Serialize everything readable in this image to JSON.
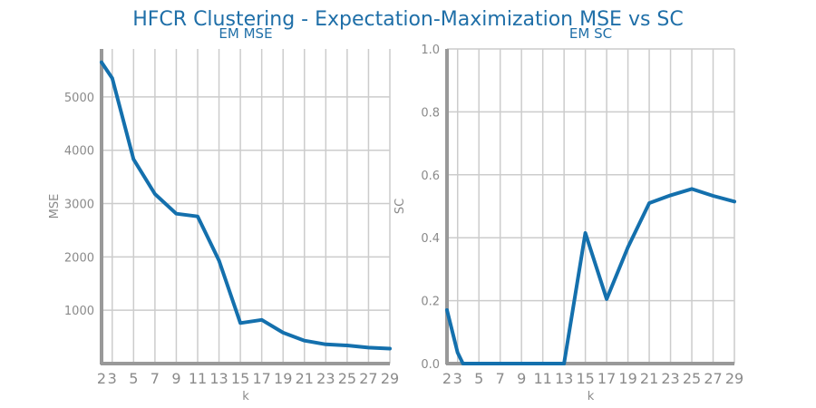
{
  "figure": {
    "title": "HFCR Clustering - Expectation-Maximization MSE vs SC",
    "title_color": "#1f6fa8"
  },
  "colors": {
    "line": "#1470ad",
    "grid": "#cccccc",
    "axis": "#999999",
    "tick_text": "#8a8a8a"
  },
  "chart_data": [
    {
      "type": "line",
      "title": "EM MSE",
      "xlabel": "k",
      "ylabel": "MSE",
      "x": [
        2,
        3,
        5,
        7,
        9,
        11,
        13,
        15,
        17,
        19,
        21,
        23,
        25,
        27,
        29
      ],
      "x_tick_labels": [
        "2",
        "3",
        "5",
        "7",
        "9",
        "11",
        "13",
        "15",
        "17",
        "19",
        "21",
        "23",
        "25",
        "27",
        "29"
      ],
      "series": [
        {
          "values": [
            5650,
            5350,
            3830,
            3180,
            2810,
            2760,
            1930,
            760,
            820,
            580,
            430,
            360,
            340,
            300,
            280
          ]
        }
      ],
      "xlim": [
        2,
        29
      ],
      "ylim": [
        0,
        5900
      ],
      "y_ticks": [
        1000,
        2000,
        3000,
        4000,
        5000
      ],
      "grid": true
    },
    {
      "type": "line",
      "title": "EM SC",
      "xlabel": "k",
      "ylabel": "SC",
      "x": [
        2,
        3,
        3.5,
        5,
        7,
        9,
        11,
        13,
        15,
        17,
        19,
        21,
        23,
        25,
        27,
        29
      ],
      "x_tick_labels": [
        "2",
        "3",
        "5",
        "7",
        "9",
        "11",
        "13",
        "15",
        "17",
        "19",
        "21",
        "23",
        "25",
        "27",
        "29"
      ],
      "x_ticks": [
        2,
        3,
        5,
        7,
        9,
        11,
        13,
        15,
        17,
        19,
        21,
        23,
        25,
        27,
        29
      ],
      "series": [
        {
          "values": [
            0.17,
            0.035,
            0.0,
            0.0,
            0.0,
            0.0,
            0.0,
            0.0,
            0.415,
            0.205,
            0.37,
            0.51,
            0.535,
            0.555,
            0.533,
            0.515
          ]
        }
      ],
      "xlim": [
        2,
        29
      ],
      "ylim": [
        0,
        1.0
      ],
      "y_ticks": [
        0.0,
        0.2,
        0.4,
        0.6,
        0.8,
        1.0
      ],
      "y_tick_labels": [
        "0.0",
        "0.2",
        "0.4",
        "0.6",
        "0.8",
        "1.0"
      ],
      "grid": true
    }
  ]
}
